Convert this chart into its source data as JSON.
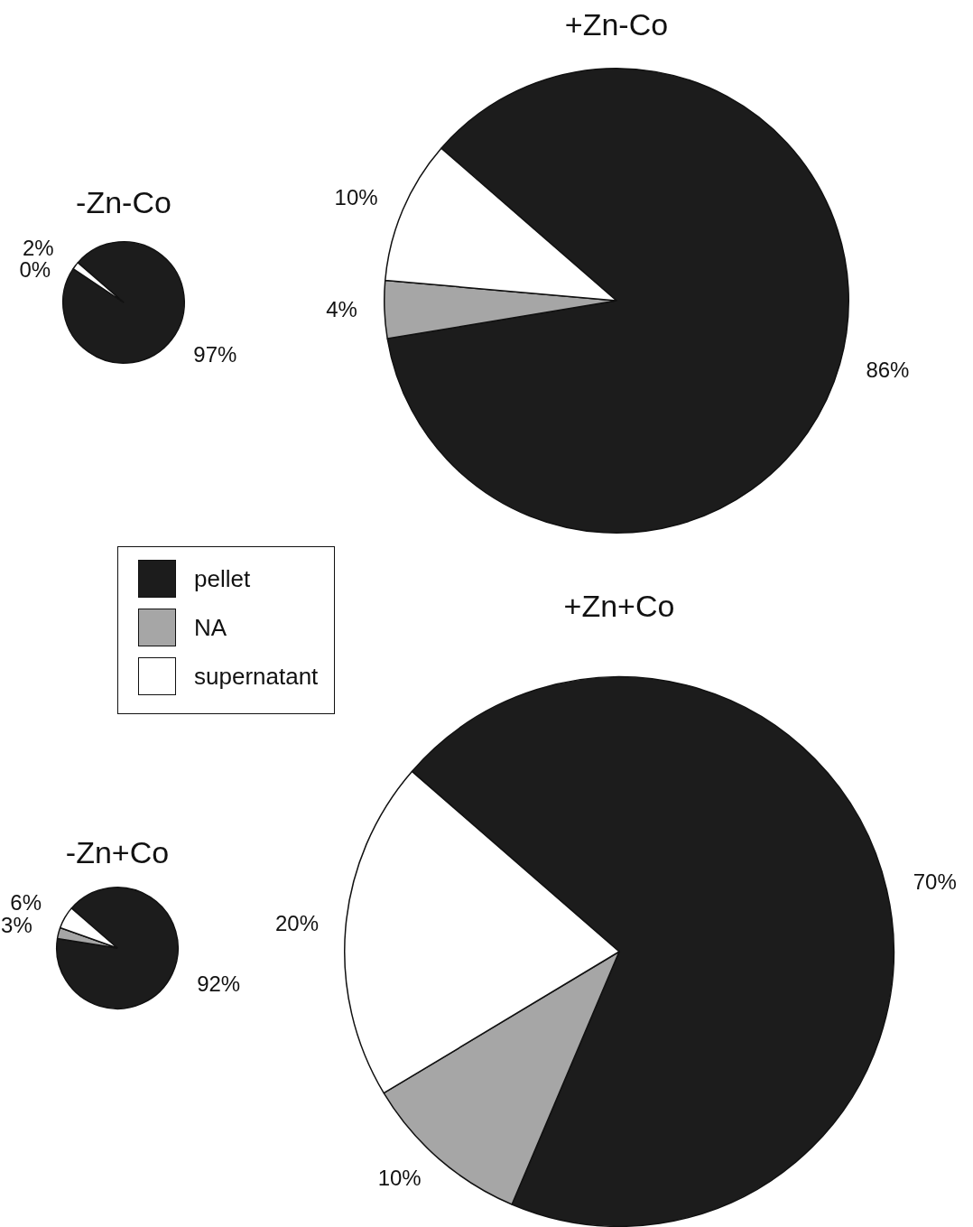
{
  "chart_data": [
    {
      "type": "pie",
      "title": "-Zn-Co",
      "categories": [
        "pellet",
        "NA",
        "supernatant"
      ],
      "values": [
        97,
        0,
        2
      ],
      "colors": [
        "#1c1c1c",
        "#a6a6a6",
        "#ffffff"
      ],
      "value_labels": [
        "97%",
        "0%",
        "2%"
      ],
      "legend": "bottom"
    },
    {
      "type": "pie",
      "title": "+Zn-Co",
      "categories": [
        null,
        null,
        null
      ],
      "values": [
        86,
        4,
        10
      ],
      "colors": [
        "#1c1c1c",
        "#a6a6a6",
        "#ffffff"
      ],
      "value_labels": [
        "86%",
        "4%",
        "10%"
      ]
    },
    {
      "type": "pie",
      "title": "-Zn+Co",
      "categories": [
        null,
        null,
        null
      ],
      "values": [
        92,
        3,
        6
      ],
      "colors": [
        "#1c1c1c",
        "#a6a6a6",
        "#ffffff"
      ],
      "value_labels": [
        "92%",
        "3%",
        "6%"
      ]
    },
    {
      "type": "pie",
      "title": "+Zn+Co",
      "categories": [
        null,
        null,
        null
      ],
      "values": [
        70,
        10,
        20
      ],
      "colors": [
        "#1c1c1c",
        "#a6a6a6",
        "#ffffff"
      ],
      "value_labels": [
        "70%",
        "10%",
        "20%"
      ]
    }
  ]
}
